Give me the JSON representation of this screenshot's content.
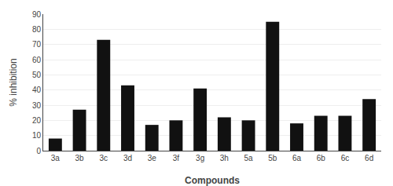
{
  "chart_data": {
    "type": "bar",
    "categories": [
      "3a",
      "3b",
      "3c",
      "3d",
      "3e",
      "3f",
      "3g",
      "3h",
      "5a",
      "5b",
      "6a",
      "6b",
      "6c",
      "6d"
    ],
    "values": [
      8,
      27,
      73,
      43,
      17,
      20,
      41,
      22,
      20,
      85,
      18,
      23,
      23,
      34
    ],
    "color": "#111111",
    "xlabel": "Compounds",
    "ylabel": "% inhibition",
    "ylim": [
      0,
      90
    ],
    "yticks": [
      0,
      10,
      20,
      30,
      40,
      50,
      60,
      70,
      80,
      90
    ],
    "grid": true
  }
}
